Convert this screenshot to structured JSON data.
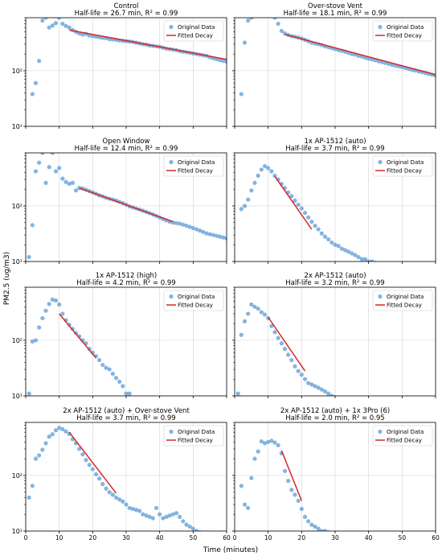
{
  "figure": {
    "ylabel": "PM2.5 (ug/m3)",
    "xlabel": "Time (minutes)",
    "x_ticks": [
      0,
      10,
      20,
      30,
      40,
      50,
      60
    ],
    "y_tick_labels": [
      "10¹",
      "10²"
    ],
    "legend": {
      "data": "Original Data",
      "fit": "Fitted Decay"
    },
    "colors": {
      "data": "#5b9bd5",
      "fit": "#d62728",
      "grid": "#d9d9d9",
      "axes": "#000000"
    }
  },
  "chart_data": [
    {
      "type": "scatter",
      "title": "Control",
      "subtitle": "Half-life = 26.7 min, R² = 0.99",
      "xlim": [
        0,
        60
      ],
      "ylim": [
        10,
        900
      ],
      "yscale": "log",
      "legend_position": "top-right",
      "grid": true,
      "series": [
        {
          "name": "Original Data",
          "kind": "points",
          "x": [
            2,
            3,
            4,
            5,
            6,
            7,
            8,
            9,
            10,
            11,
            12,
            13,
            14,
            15,
            16,
            17,
            18,
            19,
            20,
            21,
            22,
            23,
            24,
            25,
            26,
            27,
            28,
            29,
            30,
            31,
            32,
            33,
            34,
            35,
            36,
            37,
            38,
            39,
            40,
            41,
            42,
            43,
            44,
            45,
            46,
            47,
            48,
            49,
            50,
            51,
            52,
            53,
            54,
            55,
            56,
            57,
            58,
            59,
            60
          ],
          "y": [
            38,
            60,
            150,
            800,
            900,
            600,
            650,
            720,
            900,
            700,
            640,
            600,
            540,
            500,
            470,
            450,
            460,
            430,
            420,
            410,
            400,
            390,
            385,
            370,
            365,
            360,
            350,
            345,
            340,
            335,
            330,
            320,
            310,
            300,
            295,
            285,
            280,
            275,
            270,
            260,
            250,
            245,
            240,
            235,
            225,
            220,
            215,
            210,
            205,
            200,
            195,
            190,
            185,
            175,
            168,
            162,
            155,
            150,
            145
          ]
        },
        {
          "name": "Fitted Decay",
          "kind": "line",
          "x": [
            13,
            60
          ],
          "y": [
            540,
            160
          ]
        }
      ]
    },
    {
      "type": "scatter",
      "title": "Over-stove Vent",
      "subtitle": "Half-life = 18.1 min, R² = 0.99",
      "xlim": [
        0,
        60
      ],
      "ylim": [
        10,
        900
      ],
      "yscale": "log",
      "legend_position": "top-right",
      "grid": true,
      "series": [
        {
          "name": "Original Data",
          "kind": "points",
          "x": [
            2,
            3,
            4,
            5,
            12,
            13,
            14,
            15,
            16,
            17,
            18,
            19,
            20,
            21,
            22,
            23,
            24,
            25,
            26,
            27,
            28,
            29,
            30,
            31,
            32,
            33,
            34,
            35,
            36,
            37,
            38,
            39,
            40,
            41,
            42,
            43,
            44,
            45,
            46,
            47,
            48,
            49,
            50,
            51,
            52,
            53,
            54,
            55,
            56,
            57,
            58,
            59,
            60
          ],
          "y": [
            38,
            320,
            800,
            900,
            900,
            700,
            520,
            470,
            440,
            420,
            410,
            395,
            380,
            360,
            340,
            320,
            310,
            300,
            290,
            275,
            265,
            255,
            245,
            235,
            228,
            220,
            210,
            200,
            195,
            185,
            180,
            172,
            165,
            160,
            155,
            148,
            143,
            138,
            133,
            128,
            124,
            120,
            116,
            112,
            108,
            104,
            101,
            97,
            94,
            91,
            88,
            85,
            82
          ]
        },
        {
          "name": "Fitted Decay",
          "kind": "line",
          "x": [
            15,
            60
          ],
          "y": [
            450,
            85
          ]
        }
      ]
    },
    {
      "type": "scatter",
      "title": "Open Window",
      "subtitle": "Half-life = 12.4 min, R² = 0.99",
      "xlim": [
        0,
        60
      ],
      "ylim": [
        10,
        900
      ],
      "yscale": "log",
      "legend_position": "top-right",
      "grid": true,
      "series": [
        {
          "name": "Original Data",
          "kind": "points",
          "x": [
            1,
            2,
            3,
            4,
            5,
            6,
            7,
            8,
            9,
            10,
            11,
            12,
            13,
            14,
            15,
            16,
            17,
            18,
            19,
            20,
            21,
            22,
            23,
            24,
            25,
            26,
            27,
            28,
            29,
            30,
            31,
            32,
            33,
            34,
            35,
            36,
            37,
            38,
            39,
            40,
            41,
            42,
            43,
            44,
            45,
            46,
            47,
            48,
            49,
            50,
            51,
            52,
            53,
            54,
            55,
            56,
            57,
            58,
            59,
            60
          ],
          "y": [
            12,
            45,
            420,
            600,
            900,
            260,
            500,
            900,
            420,
            480,
            310,
            270,
            250,
            260,
            190,
            210,
            205,
            195,
            185,
            175,
            165,
            155,
            148,
            140,
            135,
            130,
            125,
            118,
            112,
            105,
            98,
            94,
            90,
            86,
            82,
            78,
            74,
            70,
            66,
            62,
            58,
            55,
            52,
            50,
            49,
            48,
            46,
            44,
            42,
            40,
            38,
            36,
            34,
            32,
            31,
            30,
            29,
            28,
            27,
            26
          ]
        },
        {
          "name": "Fitted Decay",
          "kind": "line",
          "x": [
            16,
            44
          ],
          "y": [
            210,
            52
          ]
        }
      ]
    },
    {
      "type": "scatter",
      "title": "1x AP-1512 (auto)",
      "subtitle": "Half-life = 3.7 min, R² = 0.99",
      "xlim": [
        0,
        60
      ],
      "ylim": [
        10,
        900
      ],
      "yscale": "log",
      "legend_position": "top-right",
      "grid": true,
      "series": [
        {
          "name": "Original Data",
          "kind": "points",
          "x": [
            2,
            3,
            4,
            5,
            6,
            7,
            8,
            9,
            10,
            11,
            12,
            13,
            14,
            15,
            16,
            17,
            18,
            19,
            20,
            21,
            22,
            23,
            24,
            25,
            26,
            27,
            28,
            29,
            30,
            31,
            32,
            33,
            34,
            35,
            36,
            37,
            38,
            39,
            40,
            41,
            42
          ],
          "y": [
            88,
            100,
            130,
            190,
            260,
            350,
            450,
            520,
            480,
            420,
            350,
            300,
            250,
            210,
            175,
            150,
            125,
            105,
            90,
            75,
            62,
            52,
            44,
            38,
            32,
            28,
            25,
            22,
            20,
            19,
            17,
            16,
            15,
            14,
            13,
            12,
            11,
            11,
            10,
            10,
            9.5
          ]
        },
        {
          "name": "Fitted Decay",
          "kind": "line",
          "x": [
            12,
            23
          ],
          "y": [
            340,
            38
          ]
        }
      ]
    },
    {
      "type": "scatter",
      "title": "1x AP-1512 (high)",
      "subtitle": "Half-life = 4.2 min, R² = 0.99",
      "xlim": [
        0,
        60
      ],
      "ylim": [
        10,
        900
      ],
      "yscale": "log",
      "legend_position": "top-right",
      "grid": true,
      "series": [
        {
          "name": "Original Data",
          "kind": "points",
          "x": [
            1,
            2,
            3,
            4,
            5,
            6,
            7,
            8,
            9,
            10,
            11,
            12,
            13,
            14,
            15,
            16,
            17,
            18,
            19,
            20,
            21,
            22,
            23,
            24,
            25,
            26,
            27,
            28,
            29,
            30,
            31
          ],
          "y": [
            11,
            95,
            100,
            170,
            250,
            340,
            450,
            540,
            520,
            440,
            300,
            230,
            190,
            160,
            135,
            118,
            100,
            88,
            70,
            60,
            52,
            44,
            36,
            32,
            30,
            25,
            21,
            18,
            15,
            11,
            11
          ]
        },
        {
          "name": "Fitted Decay",
          "kind": "line",
          "x": [
            10,
            21
          ],
          "y": [
            300,
            48
          ]
        }
      ]
    },
    {
      "type": "scatter",
      "title": "2x AP-1512 (auto)",
      "subtitle": "Half-life = 3.2 min, R² = 0.99",
      "xlim": [
        0,
        60
      ],
      "ylim": [
        10,
        900
      ],
      "yscale": "log",
      "legend_position": "top-right",
      "grid": true,
      "series": [
        {
          "name": "Original Data",
          "kind": "points",
          "x": [
            1,
            2,
            3,
            4,
            5,
            6,
            7,
            8,
            9,
            10,
            11,
            12,
            13,
            14,
            15,
            16,
            17,
            18,
            19,
            20,
            21,
            22,
            23,
            24,
            25,
            26,
            27,
            28,
            29,
            30
          ],
          "y": [
            11,
            125,
            220,
            300,
            440,
            400,
            370,
            320,
            290,
            250,
            180,
            140,
            110,
            88,
            70,
            55,
            44,
            34,
            28,
            24,
            20,
            17,
            16,
            15,
            14,
            13,
            12,
            11,
            10,
            9.5
          ]
        },
        {
          "name": "Fitted Decay",
          "kind": "line",
          "x": [
            10,
            21
          ],
          "y": [
            260,
            28
          ]
        }
      ]
    },
    {
      "type": "scatter",
      "title": "2x AP-1512 (auto) + Over-stove Vent",
      "subtitle": "Half-life = 3.7 min, R² = 0.99",
      "xlim": [
        0,
        60
      ],
      "ylim": [
        10,
        900
      ],
      "yscale": "log",
      "legend_position": "top-right",
      "grid": true,
      "series": [
        {
          "name": "Original Data",
          "kind": "points",
          "x": [
            1,
            2,
            3,
            4,
            5,
            6,
            7,
            8,
            9,
            10,
            11,
            12,
            13,
            14,
            15,
            16,
            17,
            18,
            19,
            20,
            21,
            22,
            23,
            24,
            25,
            26,
            27,
            28,
            29,
            30,
            31,
            32,
            33,
            34,
            35,
            36,
            37,
            38,
            39,
            40,
            41,
            42,
            43,
            44,
            45,
            46,
            47,
            48,
            49,
            50,
            51,
            52,
            53
          ],
          "y": [
            40,
            65,
            200,
            230,
            290,
            380,
            500,
            550,
            650,
            720,
            680,
            620,
            560,
            450,
            380,
            300,
            240,
            190,
            155,
            130,
            105,
            88,
            70,
            58,
            50,
            45,
            40,
            37,
            34,
            30,
            26,
            25,
            24,
            23,
            20,
            19,
            18,
            17,
            26,
            20,
            17,
            18,
            19,
            20,
            21,
            18,
            15,
            13,
            12,
            11,
            10,
            9.5,
            9
          ]
        },
        {
          "name": "Fitted Decay",
          "kind": "line",
          "x": [
            13,
            27
          ],
          "y": [
            600,
            48
          ]
        }
      ]
    },
    {
      "type": "scatter",
      "title": "2x AP-1512 (auto) + 1x 3Pro (6)",
      "subtitle": "Half-life = 2.0 min, R² = 0.95",
      "xlim": [
        0,
        60
      ],
      "ylim": [
        10,
        900
      ],
      "yscale": "log",
      "legend_position": "top-right",
      "grid": true,
      "series": [
        {
          "name": "Original Data",
          "kind": "points",
          "x": [
            2,
            3,
            4,
            5,
            6,
            7,
            8,
            9,
            10,
            11,
            12,
            13,
            14,
            15,
            16,
            17,
            18,
            19,
            20,
            21,
            22,
            23,
            24,
            25,
            26,
            27,
            28
          ],
          "y": [
            65,
            30,
            26,
            90,
            200,
            270,
            410,
            380,
            400,
            420,
            390,
            350,
            250,
            120,
            80,
            55,
            45,
            35,
            25,
            18,
            15,
            13,
            12,
            11,
            10,
            10,
            9.5
          ]
        },
        {
          "name": "Fitted Decay",
          "kind": "line",
          "x": [
            14,
            20
          ],
          "y": [
            280,
            35
          ]
        }
      ]
    }
  ]
}
